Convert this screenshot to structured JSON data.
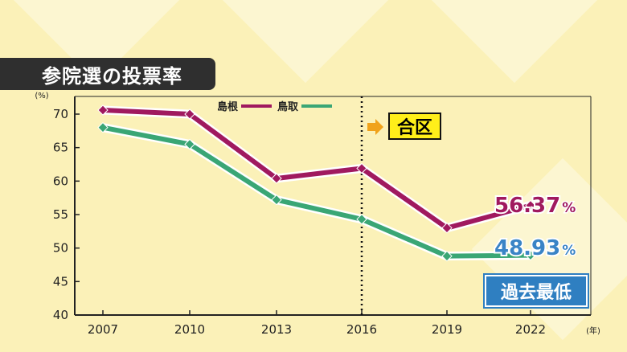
{
  "title": "参院選の投票率",
  "chart_data": {
    "type": "line",
    "categories": [
      "2007",
      "2010",
      "2013",
      "2016",
      "2019",
      "2022"
    ],
    "series": [
      {
        "name": "島根",
        "color": "#a0195f",
        "values": [
          70.6,
          70.0,
          60.4,
          61.9,
          53.0,
          56.37
        ]
      },
      {
        "name": "鳥取",
        "color": "#3aa675",
        "values": [
          68.0,
          65.5,
          57.2,
          54.3,
          48.8,
          48.93
        ]
      }
    ],
    "ylim": [
      40,
      70
    ],
    "yticks": [
      "40",
      "45",
      "50",
      "55",
      "60",
      "65",
      "70"
    ],
    "y_unit": "(%)",
    "x_unit": "(年)",
    "annotations": {
      "merge_label": "合区",
      "shimane_last": "56.37",
      "tottori_last": "48.93",
      "percent_sign": "%",
      "record_label": "過去最低"
    }
  }
}
